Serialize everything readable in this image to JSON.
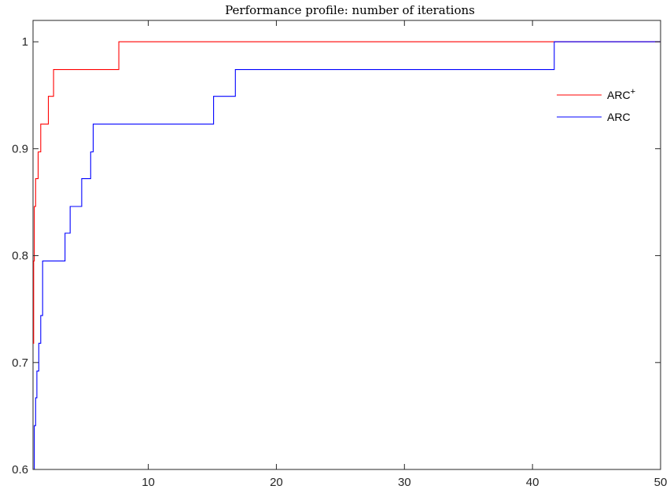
{
  "chart_data": {
    "type": "line",
    "title": "Performance profile: number of iterations",
    "xlabel": "",
    "ylabel": "",
    "xlim": [
      1,
      50
    ],
    "ylim": [
      0.6,
      1.02
    ],
    "x_ticks": [
      10,
      20,
      30,
      40,
      50
    ],
    "y_ticks": [
      0.6,
      0.7,
      0.8,
      0.9,
      1
    ],
    "x_tick_labels": [
      "10",
      "20",
      "30",
      "40",
      "50"
    ],
    "y_tick_labels": [
      "0.6",
      "0.7",
      "0.8",
      "0.9",
      "1"
    ],
    "legend_position": "top-right",
    "grid": false,
    "step": "post",
    "series": [
      {
        "name": "ARC",
        "superscript": "+",
        "color": "#ff0000",
        "x": [
          1,
          1.05,
          1.1,
          1.2,
          1.4,
          1.6,
          2.2,
          2.6,
          7.7,
          50
        ],
        "y": [
          0.718,
          0.795,
          0.846,
          0.872,
          0.897,
          0.923,
          0.949,
          0.974,
          1,
          1
        ]
      },
      {
        "name": "ARC",
        "superscript": "",
        "color": "#0000ff",
        "x": [
          1,
          1.1,
          1.2,
          1.3,
          1.45,
          1.6,
          1.75,
          1.9,
          3.5,
          3.9,
          4.8,
          5.5,
          5.7,
          15.1,
          16.8,
          41.7,
          50
        ],
        "y": [
          0.6,
          0.641,
          0.667,
          0.692,
          0.718,
          0.744,
          0.795,
          0.795,
          0.821,
          0.846,
          0.872,
          0.897,
          0.923,
          0.949,
          0.974,
          1,
          1
        ]
      }
    ]
  }
}
